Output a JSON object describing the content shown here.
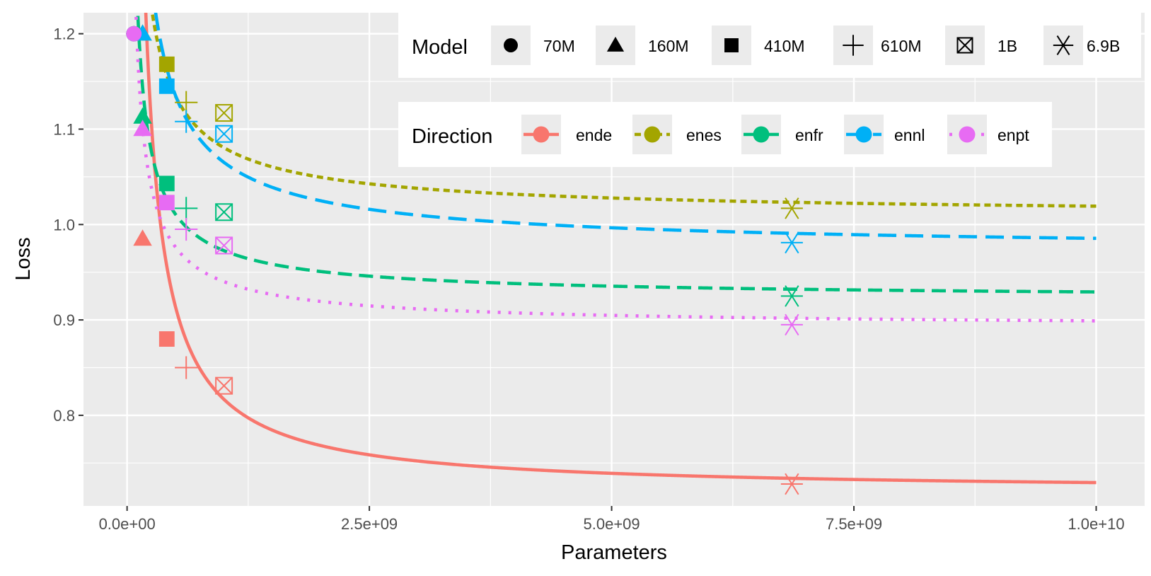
{
  "chart_data": {
    "type": "scatter",
    "xlabel": "Parameters",
    "ylabel": "Loss",
    "xlim": [
      -450000000.0,
      10500000000.0
    ],
    "ylim": [
      0.705,
      1.222
    ],
    "x_ticks": [
      0,
      2500000000.0,
      5000000000.0,
      7500000000.0,
      10000000000.0
    ],
    "x_tick_labels": [
      "0.0e+00",
      "2.5e+09",
      "5.0e+09",
      "7.5e+09",
      "1.0e+10"
    ],
    "x_minor_ticks": [
      1250000000.0,
      3750000000.0,
      6250000000.0,
      8750000000.0
    ],
    "y_ticks": [
      0.8,
      0.9,
      1.0,
      1.1,
      1.2
    ],
    "y_tick_labels": [
      "0.8",
      "0.9",
      "1.0",
      "1.1",
      "1.2"
    ],
    "y_minor_ticks": [
      0.75,
      0.85,
      0.95,
      1.05,
      1.15
    ],
    "grid": true,
    "legend_model": {
      "title": "Model",
      "entries": [
        {
          "label": "70M",
          "shape": "circle"
        },
        {
          "label": "160M",
          "shape": "triangle"
        },
        {
          "label": "410M",
          "shape": "square"
        },
        {
          "label": "610M",
          "shape": "plus"
        },
        {
          "label": "1B",
          "shape": "boxcross"
        },
        {
          "label": "6.9B",
          "shape": "asterisk"
        }
      ]
    },
    "legend_direction": {
      "title": "Direction",
      "entries": [
        {
          "label": "ende",
          "color": "#F8766D",
          "dash": "solid"
        },
        {
          "label": "enes",
          "color": "#A3A500",
          "dash": "short"
        },
        {
          "label": "enfr",
          "color": "#00BF7D",
          "dash": "dashed"
        },
        {
          "label": "ennl",
          "color": "#00B0F6",
          "dash": "long"
        },
        {
          "label": "enpt",
          "color": "#E76BF3",
          "dash": "dotted"
        }
      ]
    },
    "model_sizes": [
      70000000,
      160000000,
      410000000,
      610000000,
      1000000000,
      6860000000
    ],
    "series": [
      {
        "name": "ende",
        "color": "#F8766D",
        "dash": "solid",
        "curve": {
          "a": 0.7198,
          "b": 0.0969,
          "c": 1.0
        },
        "points": [
          1.2,
          0.985,
          0.88,
          0.85,
          0.831,
          0.728
        ]
      },
      {
        "name": "enes",
        "color": "#A3A500",
        "dash": "short",
        "curve": {
          "a": 1.0077,
          "b": 0.0728,
          "c": 0.8
        },
        "points": [
          1.2,
          1.2,
          1.168,
          1.128,
          1.117,
          1.017
        ]
      },
      {
        "name": "enfr",
        "color": "#00BF7D",
        "dash": "dashed",
        "curve": {
          "a": 0.9212,
          "b": 0.0514,
          "c": 0.8
        },
        "points": [
          1.2,
          1.113,
          1.043,
          1.017,
          1.013,
          0.925
        ]
      },
      {
        "name": "ennl",
        "color": "#00B0F6",
        "dash": "long",
        "curve": {
          "a": 0.9705,
          "b": 0.0946,
          "c": 0.8
        },
        "points": [
          1.2,
          1.2,
          1.145,
          1.108,
          1.095,
          0.981
        ]
      },
      {
        "name": "enpt",
        "color": "#E76BF3",
        "dash": "dotted",
        "curve": {
          "a": 0.8913,
          "b": 0.0488,
          "c": 0.8
        },
        "points": [
          1.2,
          1.1,
          1.023,
          0.995,
          0.978,
          0.895
        ]
      }
    ]
  }
}
